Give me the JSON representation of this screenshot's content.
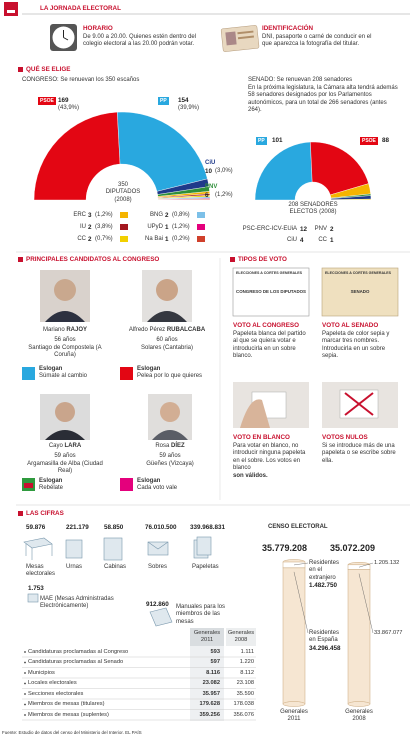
{
  "header": {
    "title": "LA JORNADA ELECTORAL"
  },
  "horario": {
    "title": "HORARIO",
    "text": "De 9.00 a 20.00. Quienes estén dentro del colegio electoral a las 20.00 podrán votar."
  },
  "identificacion": {
    "title": "IDENTIFICACIÓN",
    "text": "DNI, pasaporte o carné de conducir en el que aparezca la fotografía del titular."
  },
  "que_se_elige": {
    "title": "QUÉ SE ELIGE",
    "congreso": {
      "note": "CONGRESO: Se renuevan los 350 escaños",
      "center_label": "350 DIPUTADOS (2008)",
      "parties": [
        {
          "name": "PSOE",
          "seats": 169,
          "pct": "(43,9%)",
          "color": "#e30613"
        },
        {
          "name": "PP",
          "seats": 154,
          "pct": "(39,9%)",
          "color": "#29a8df"
        },
        {
          "name": "CiU",
          "seats": 10,
          "pct": "(3,0%)",
          "color": "#1f3a8a"
        },
        {
          "name": "PNV",
          "seats": 6,
          "pct": "(1,2%)",
          "color": "#2f8f3a"
        },
        {
          "name": "ERC",
          "seats": 3,
          "pct": "(1,2%)",
          "color": "#f5b400"
        },
        {
          "name": "IU",
          "seats": 2,
          "pct": "(3,8%)",
          "color": "#a3171f"
        },
        {
          "name": "CC",
          "seats": 2,
          "pct": "(0,7%)",
          "color": "#f2d000"
        },
        {
          "name": "BNG",
          "seats": 2,
          "pct": "(0,8%)",
          "color": "#7cc0e8"
        },
        {
          "name": "UPyD",
          "seats": 1,
          "pct": "(1,2%)",
          "color": "#e4007c"
        },
        {
          "name": "Na Bai",
          "seats": 1,
          "pct": "(0,2%)",
          "color": "#d0402b"
        }
      ]
    },
    "senado": {
      "note": "SENADO: Se renuevan 208 senadores",
      "text": "En la próxima legislatura, la Cámara alta tendrá además 58 senadores designados por los Parlamentos autonómicos, para un total de 266 senadores (antes 264).",
      "center_label": "208 SENADORES ELECTOS (2008)",
      "parties": [
        {
          "name": "PP",
          "seats": 101,
          "color": "#29a8df"
        },
        {
          "name": "PSOE",
          "seats": 88,
          "color": "#e30613"
        },
        {
          "name": "PSC-ERC-ICV-EUiA",
          "seats": 12,
          "color": "#f5b400"
        },
        {
          "name": "PNV",
          "seats": 2,
          "color": "#2f8f3a"
        },
        {
          "name": "CiU",
          "seats": 4,
          "color": "#1f3a8a"
        },
        {
          "name": "CC",
          "seats": 1,
          "color": "#f2d000"
        }
      ]
    }
  },
  "candidatos": {
    "title": "PRINCIPALES CANDIDATOS AL CONGRESO",
    "items": [
      {
        "first": "Mariano",
        "last": "RAJOY",
        "age": "56 años",
        "birthplace": "Santiago de Compostela (A Coruña)",
        "slogan_label": "Eslogan",
        "slogan": "Súmate al cambio"
      },
      {
        "first": "Alfredo Pérez",
        "last": "RUBALCABA",
        "age": "60 años",
        "birthplace": "Solares (Cantabria)",
        "slogan_label": "Eslogan",
        "slogan": "Pelea por lo que quieres"
      },
      {
        "first": "Cayo",
        "last": "LARA",
        "age": "59 años",
        "birthplace": "Argamasilla de Alba (Ciudad Real)",
        "slogan_label": "Eslogan",
        "slogan": "Rebélate"
      },
      {
        "first": "Rosa",
        "last": "DÍEZ",
        "age": "59 años",
        "birthplace": "Güeñes (Vizcaya)",
        "slogan_label": "Eslogan",
        "slogan": "Cada voto vale"
      }
    ]
  },
  "tipos_voto": {
    "title": "TIPOS DE VOTO",
    "ballots": [
      {
        "header": "ELECCIONES A CORTES GENERALES",
        "body": "CONGRESO DE LOS DIPUTADOS"
      },
      {
        "header": "ELECCIONES A CORTES GENERALES",
        "body": "SENADO"
      }
    ],
    "items": [
      {
        "title": "VOTO AL CONGRESO",
        "text": "Papeleta blanca del partido al que se quiera votar e introducirla en un sobre blanco."
      },
      {
        "title": "VOTO AL SENADO",
        "text": "Papeleta de color sepia y marcar tres nombres. Introducirla en un sobre sepia."
      },
      {
        "title": "VOTO EN BLANCO",
        "text": "Para votar en blanco, no introducir ninguna papeleta en el sobre. Los votos en blanco",
        "bold": "son válidos."
      },
      {
        "title": "VOTOS NULOS",
        "text": "Si se introduce más de una papeleta o se escribe sobre ella."
      }
    ]
  },
  "cifras": {
    "title": "LAS CIFRAS",
    "items": [
      {
        "number": "59.876",
        "label": "Mesas electorales"
      },
      {
        "number": "221.179",
        "label": "Urnas"
      },
      {
        "number": "58.850",
        "label": "Cabinas"
      },
      {
        "number": "76.010.500",
        "label": "Sobres"
      },
      {
        "number": "339.968.831",
        "label": "Papeletas"
      },
      {
        "number": "1.753",
        "label": "MAE (Mesas Administradas Electrónicamente)"
      },
      {
        "number": "912.860",
        "label": "Manuales para los miembros de las mesas"
      }
    ],
    "table": {
      "columns": [
        "Generales 2011",
        "Generales 2008"
      ],
      "rows": [
        [
          "Candidaturas proclamadas al Congreso",
          "593",
          "1.111"
        ],
        [
          "Candidaturas proclamadas al Senado",
          "597",
          "1.220"
        ],
        [
          "Municipios",
          "8.116",
          "8.112"
        ],
        [
          "Locales electorales",
          "23.082",
          "23.108"
        ],
        [
          "Secciones electorales",
          "35.957",
          "35.590"
        ],
        [
          "Miembros de mesas (titulares)",
          "179.628",
          "178.038"
        ],
        [
          "Miembros de mesas (suplentes)",
          "359.256",
          "356.076"
        ]
      ]
    }
  },
  "censo": {
    "title": "CENSO ELECTORAL",
    "years": [
      {
        "label": "Generales 2011",
        "total": {
          "value": 35779208,
          "label": "35.779.208"
        },
        "segments": [
          {
            "name": "Residentes en el extranjero",
            "value": 1482750,
            "value_label": "1.482.750"
          },
          {
            "name": "Residentes en España",
            "value": 34296458,
            "value_label": "34.296.458"
          }
        ]
      },
      {
        "label": "Generales 2008",
        "total": {
          "value": 35072209,
          "label": "35.072.209"
        },
        "segments": [
          {
            "value": 1205132,
            "value_label": "1.205.132"
          },
          {
            "value": 33867077,
            "value_label": "33.867.077"
          }
        ]
      }
    ]
  },
  "source": "Fuente: Estudio de datos del censo del Ministerio del Interior.  EL PAÍS"
}
